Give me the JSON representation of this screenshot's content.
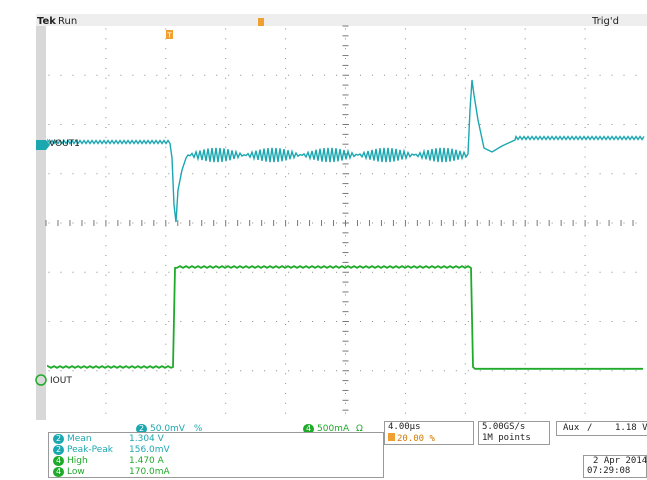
{
  "header": {
    "brand": "Tek",
    "status": "Run",
    "trigger_state": "Trig'd"
  },
  "channels": {
    "ch2_label": "VOUT1",
    "ch4_label": "IOUT",
    "ch2_color": "#1aa7b0",
    "ch4_color": "#1faa2a"
  },
  "bottom_bar": {
    "ch2_num": "2",
    "ch2_scale": "50.0mV",
    "ch2_suffix": "%",
    "ch4_num": "4",
    "ch4_scale": "500mA",
    "ch4_suffix": "Ω",
    "timebase": "4.00µs",
    "trig_pos": "20.00 %",
    "sample_rate": "5.00GS/s",
    "record_length": "1M points",
    "trigger_source": "Aux",
    "trigger_slope": "∕",
    "trigger_level": "1.18 V"
  },
  "measurements": [
    {
      "ch": "2",
      "name": "Mean",
      "value": "1.304 V"
    },
    {
      "ch": "2",
      "name": "Peak-Peak",
      "value": "156.0mV"
    },
    {
      "ch": "4",
      "name": "High",
      "value": "1.470 A"
    },
    {
      "ch": "4",
      "name": "Low",
      "value": "170.0mA"
    }
  ],
  "datetime": {
    "date": "2 Apr 2014",
    "time": "07:29:08"
  }
}
